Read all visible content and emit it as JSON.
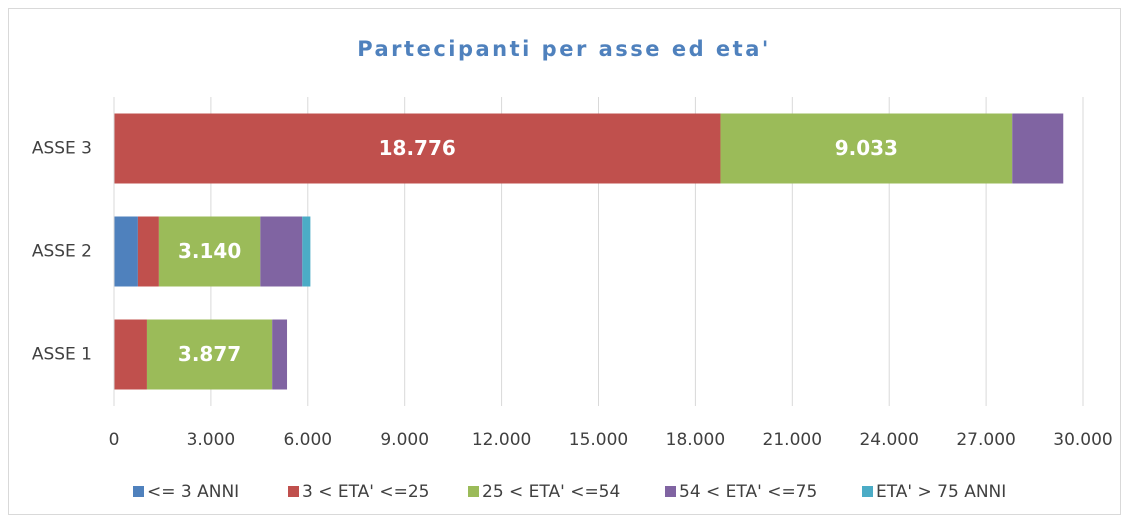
{
  "chart_data": {
    "type": "stacked-barh",
    "title": "Partecipanti per asse ed eta'",
    "categories": [
      "ASSE 1",
      "ASSE 2",
      "ASSE 3"
    ],
    "series": [
      {
        "name": "<= 3 ANNI",
        "color": "#4f81bd",
        "values": [
          0,
          740,
          0
        ],
        "value_labels": [
          null,
          null,
          null
        ]
      },
      {
        "name": "3 < ETA' <=25",
        "color": "#c0504d",
        "values": [
          1020,
          650,
          18776
        ],
        "value_labels": [
          null,
          null,
          "18.776"
        ]
      },
      {
        "name": "25 < ETA' <=54",
        "color": "#9bbb59",
        "values": [
          3877,
          3140,
          9033
        ],
        "value_labels": [
          "3.877",
          "3.140",
          "9.033"
        ]
      },
      {
        "name": "54 < ETA' <=75",
        "color": "#8064a2",
        "values": [
          460,
          1300,
          1580
        ],
        "value_labels": [
          null,
          null,
          null
        ]
      },
      {
        "name": "ETA' > 75 ANNI",
        "color": "#4bacc6",
        "values": [
          0,
          250,
          0
        ],
        "value_labels": [
          null,
          null,
          null
        ]
      }
    ],
    "xlim": [
      0,
      30000
    ],
    "xticks": [
      0,
      {
        "value": 3000,
        "label": "3.000"
      },
      {
        "value": 6000,
        "label": "6.000"
      },
      {
        "value": 9000,
        "label": "9.000"
      },
      {
        "value": 12000,
        "label": "12.000"
      },
      {
        "value": 15000,
        "label": "15.000"
      },
      {
        "value": 18000,
        "label": "18.000"
      },
      {
        "value": 21000,
        "label": "21.000"
      },
      {
        "value": 24000,
        "label": "24.000"
      },
      {
        "value": 27000,
        "label": "27.000"
      },
      {
        "value": 30000,
        "label": "30.000"
      }
    ],
    "grid": true,
    "legend": "bottom"
  }
}
